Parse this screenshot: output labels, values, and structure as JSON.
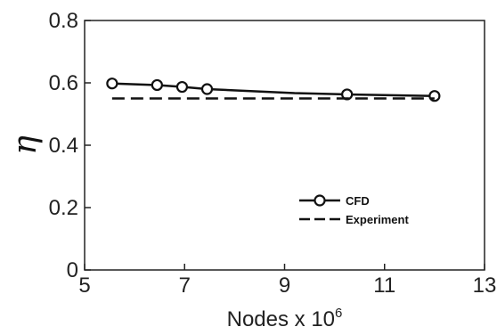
{
  "chart_data": {
    "type": "line",
    "xlabel": "Nodes x 10",
    "xlabel_superscript": "6",
    "ylabel": "η",
    "xlim": [
      5,
      13
    ],
    "ylim": [
      0,
      0.8
    ],
    "xticks": [
      5,
      7,
      9,
      11,
      13
    ],
    "xtick_labels": [
      "5",
      "7",
      "9",
      "11",
      "13"
    ],
    "yticks": [
      0,
      0.2,
      0.4,
      0.6,
      0.8
    ],
    "ytick_labels": [
      "0",
      "0.2",
      "0.4",
      "0.6",
      "0.8"
    ],
    "grid": false,
    "legend_position": "center-right",
    "series": [
      {
        "name": "CFD",
        "style": "solid-line-open-circle",
        "color": "#111111",
        "x": [
          5.55,
          6.45,
          6.95,
          7.45,
          9.2,
          10.25,
          12.0
        ],
        "y": [
          0.598,
          0.593,
          0.587,
          0.58,
          0.567,
          0.563,
          0.558
        ],
        "marker_indices": [
          0,
          1,
          2,
          3,
          5,
          6
        ]
      },
      {
        "name": "Experiment",
        "style": "dashed-line",
        "color": "#111111",
        "x": [
          5.55,
          12.0
        ],
        "y": [
          0.55,
          0.55
        ]
      }
    ]
  }
}
